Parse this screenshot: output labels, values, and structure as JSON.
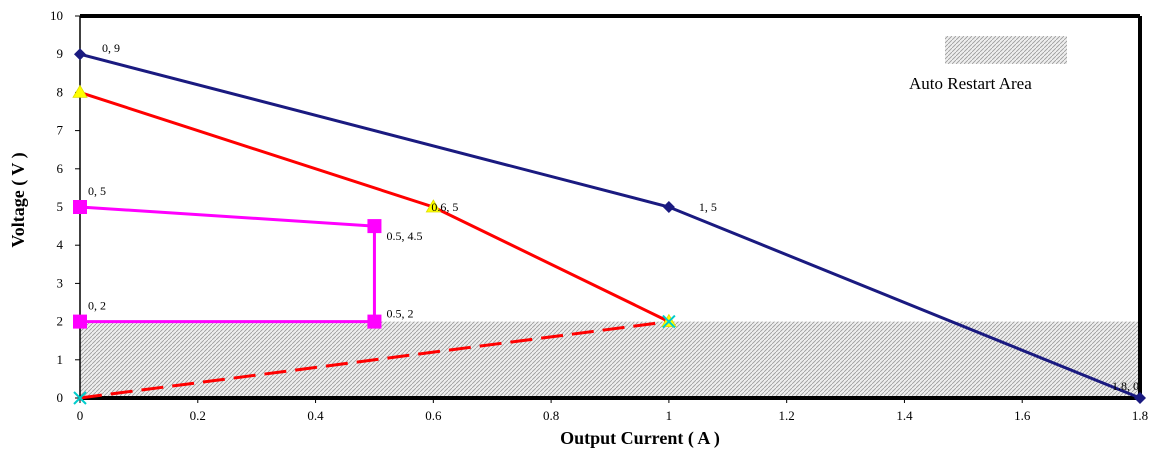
{
  "chart_data": {
    "type": "line",
    "title": "",
    "xlabel": "Output Current ( A )",
    "ylabel": "Voltage ( V )",
    "xlim": [
      0,
      1.8
    ],
    "ylim": [
      0,
      10
    ],
    "xticks": [
      "0",
      "0.2",
      "0.4",
      "0.6",
      "0.8",
      "1",
      "1.2",
      "1.4",
      "1.6",
      "1.8"
    ],
    "yticks": [
      "0",
      "1",
      "2",
      "3",
      "4",
      "5",
      "6",
      "7",
      "8",
      "9",
      "10"
    ],
    "grid": false,
    "legend": {
      "placement": "top-right",
      "entries": [
        "Auto Restart Area"
      ]
    },
    "shaded_region": {
      "label": "Auto Restart Area",
      "x": [
        0,
        1.8
      ],
      "y": [
        0,
        2
      ],
      "fill": "hatched-gray"
    },
    "series": [
      {
        "color": "#1a1a80",
        "marker": "diamond",
        "dash": "solid",
        "points": [
          {
            "x": 0,
            "y": 9
          },
          {
            "x": 1,
            "y": 5
          },
          {
            "x": 1.8,
            "y": 0
          }
        ],
        "point_labels": [
          "0, 9",
          "1, 5",
          "1.8, 0"
        ]
      },
      {
        "color": "#ff0000",
        "marker": "triangle",
        "dash": "solid",
        "points": [
          {
            "x": 0,
            "y": 8
          },
          {
            "x": 0.6,
            "y": 5
          },
          {
            "x": 1,
            "y": 2
          }
        ],
        "point_labels": [
          "",
          "0.6, 5",
          ""
        ]
      },
      {
        "color": "#ff0000",
        "marker": "none",
        "dash": "dashed",
        "points": [
          {
            "x": 0,
            "y": 0
          },
          {
            "x": 1,
            "y": 2
          }
        ],
        "point_labels": [
          "",
          ""
        ]
      },
      {
        "color": "#ff00ff",
        "marker": "square",
        "dash": "solid",
        "points": [
          {
            "x": 0,
            "y": 5
          },
          {
            "x": 0.5,
            "y": 4.5
          },
          {
            "x": 0.5,
            "y": 2
          },
          {
            "x": 0,
            "y": 2
          }
        ],
        "point_labels": [
          "0, 5",
          "0.5, 4.5",
          "0.5, 2",
          "0, 2"
        ]
      },
      {
        "color": "#00cccc",
        "marker": "cross",
        "dash": "none",
        "points": [
          {
            "x": 0,
            "y": 0
          },
          {
            "x": 1,
            "y": 2
          }
        ],
        "point_labels": [
          "",
          ""
        ]
      }
    ]
  }
}
